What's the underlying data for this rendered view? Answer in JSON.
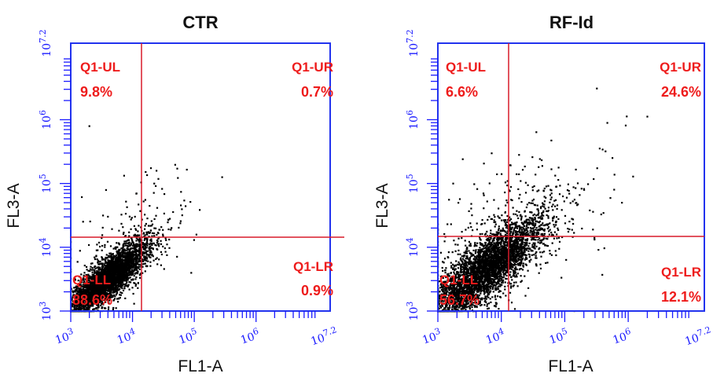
{
  "colors": {
    "frame": "#2233ee",
    "gate": "#d81c2a",
    "label": "#ee1c1c",
    "tick": "#1a1aff",
    "dots": "#000000"
  },
  "chart_data": [
    {
      "type": "scatter",
      "title": "CTR",
      "xlabel": "FL1-A",
      "ylabel": "FL3-A",
      "scale": "log",
      "xlim": [
        3,
        7.2
      ],
      "ylim": [
        3,
        7.2
      ],
      "xticks": [
        {
          "base": "10",
          "exp": "3"
        },
        {
          "base": "10",
          "exp": "4"
        },
        {
          "base": "10",
          "exp": "5"
        },
        {
          "base": "10",
          "exp": "6"
        },
        {
          "base": "10",
          "exp": "7.2"
        }
      ],
      "yticks": [
        {
          "base": "10",
          "exp": "3"
        },
        {
          "base": "10",
          "exp": "4"
        },
        {
          "base": "10",
          "exp": "5"
        },
        {
          "base": "10",
          "exp": "6"
        },
        {
          "base": "10",
          "exp": "7.2"
        }
      ],
      "gate": {
        "x": 4.05,
        "y": 4.0
      },
      "quadrants": [
        {
          "name": "Q1-UL",
          "value": "9.8%"
        },
        {
          "name": "Q1-UR",
          "value": "0.7%"
        },
        {
          "name": "Q1-LL",
          "value": "88.6%"
        },
        {
          "name": "Q1-LR",
          "value": "0.9%"
        }
      ],
      "population": {
        "center": [
          3.6,
          3.5
        ],
        "spread": [
          0.32,
          0.28
        ],
        "count": 3800
      },
      "outliers": [
        [
          3.3,
          5.9
        ],
        [
          5.45,
          5.1
        ],
        [
          4.35,
          5.0
        ],
        [
          4.95,
          3.6
        ]
      ]
    },
    {
      "type": "scatter",
      "title": "RF-Id",
      "xlabel": "FL1-A",
      "ylabel": "FL3-A",
      "scale": "log",
      "xlim": [
        3,
        7.2
      ],
      "ylim": [
        3,
        7.2
      ],
      "xticks": [
        {
          "base": "10",
          "exp": "3"
        },
        {
          "base": "10",
          "exp": "4"
        },
        {
          "base": "10",
          "exp": "5"
        },
        {
          "base": "10",
          "exp": "6"
        },
        {
          "base": "10",
          "exp": "7.2"
        }
      ],
      "yticks": [
        {
          "base": "10",
          "exp": "3"
        },
        {
          "base": "10",
          "exp": "4"
        },
        {
          "base": "10",
          "exp": "5"
        },
        {
          "base": "10",
          "exp": "6"
        },
        {
          "base": "10",
          "exp": "7.2"
        }
      ],
      "gate": {
        "x": 4.05,
        "y": 4.0
      },
      "quadrants": [
        {
          "name": "Q1-UL",
          "value": "6.6%"
        },
        {
          "name": "Q1-UR",
          "value": "24.6%"
        },
        {
          "name": "Q1-LL",
          "value": "56.7%"
        },
        {
          "name": "Q1-LR",
          "value": "12.1%"
        }
      ],
      "population": {
        "center": [
          3.75,
          3.65
        ],
        "spread": [
          0.45,
          0.4
        ],
        "count": 3800
      },
      "outliers": [
        [
          6.3,
          6.05
        ],
        [
          5.55,
          5.55
        ],
        [
          5.75,
          5.4
        ],
        [
          5.9,
          4.7
        ]
      ]
    }
  ]
}
